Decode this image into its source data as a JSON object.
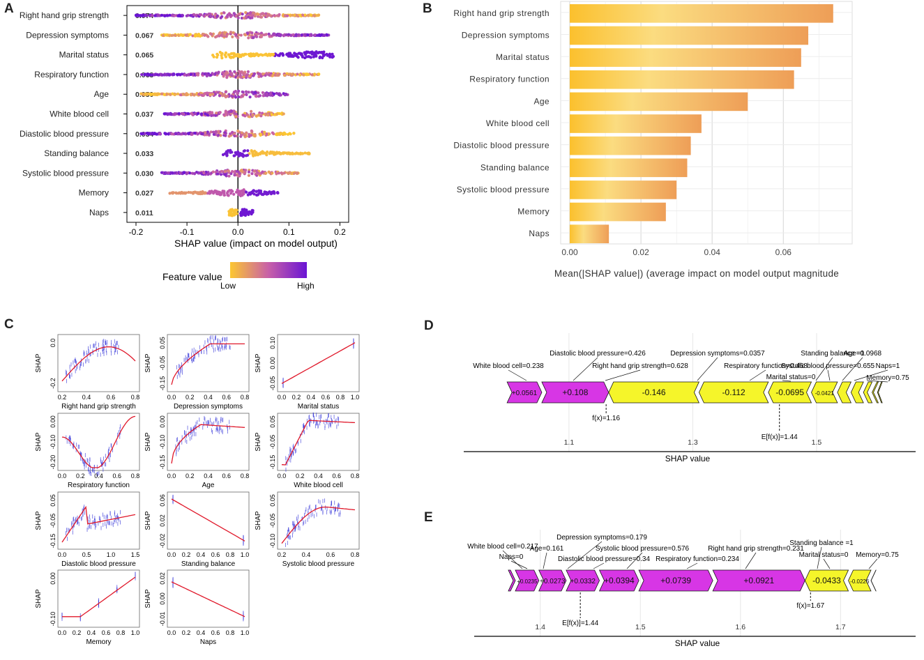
{
  "panels": {
    "a": "A",
    "b": "B",
    "c": "C",
    "d": "D",
    "e": "E"
  },
  "colors": {
    "low": "#fcc731",
    "mid": "#c860a8",
    "high": "#6a14d4",
    "bar_dark": "#ee9e57",
    "bar_light": "#fbc02d",
    "positive": "#d736e5",
    "negative": "#f5f52a",
    "trend": "#e0182a",
    "points": "#3030d8"
  },
  "chart_data": [
    {
      "panel": "A",
      "type": "scatter",
      "subtype": "shap-beeswarm",
      "xlabel": "SHAP value (impact on model output)",
      "xlim": [
        -0.2,
        0.2
      ],
      "xticks": [
        "-0.2",
        "-0.1",
        "0.0",
        "0.1",
        "0.2"
      ],
      "legend_title": "Feature value",
      "legend_low": "Low",
      "legend_high": "High",
      "features": [
        "Right hand grip strength",
        "Depression symptoms",
        "Marital status",
        "Respiratory function",
        "Age",
        "White blood cell",
        "Diastolic blood pressure",
        "Standing balance",
        "Systolic blood pressure",
        "Memory",
        "Naps"
      ],
      "values": [
        "0.074",
        "0.067",
        "0.065",
        "0.063",
        "0.050",
        "0.037",
        "0.034",
        "0.033",
        "0.030",
        "0.027",
        "0.011"
      ],
      "ranges": [
        [
          -0.2,
          0.16
        ],
        [
          -0.15,
          0.18
        ],
        [
          -0.05,
          0.19
        ],
        [
          -0.19,
          0.16
        ],
        [
          -0.19,
          0.1
        ],
        [
          -0.15,
          0.09
        ],
        [
          -0.19,
          0.11
        ],
        [
          -0.03,
          0.14
        ],
        [
          -0.15,
          0.12
        ],
        [
          -0.14,
          0.08
        ],
        [
          -0.02,
          0.03
        ]
      ]
    },
    {
      "panel": "B",
      "type": "bar",
      "orientation": "horizontal",
      "xlabel": "Mean(|SHAP value|) (average impact on model output magnitude",
      "xlim": [
        0,
        0.076
      ],
      "xticks": [
        "0.00",
        "0.02",
        "0.04",
        "0.06"
      ],
      "categories": [
        "Right hand grip strength",
        "Depression symptoms",
        "Marital status",
        "Respiratory function",
        "Age",
        "White blood cell",
        "Diastolic blood pressure",
        "Standing balance",
        "Systolic blood pressure",
        "Memory",
        "Naps"
      ],
      "values": [
        0.074,
        0.067,
        0.065,
        0.063,
        0.05,
        0.037,
        0.034,
        0.033,
        0.03,
        0.027,
        0.011
      ]
    },
    {
      "panel": "C",
      "type": "scatter",
      "subtype": "shap-dependence-grid",
      "ylabel": "SHAP",
      "plots": [
        {
          "label": "Right hand grip strength",
          "xticks": [
            "0.2",
            "0.4",
            "0.6",
            "0.8"
          ],
          "yticks": [
            "0.0",
            "-0.2"
          ]
        },
        {
          "label": "Depression symptoms",
          "xticks": [
            "0.0",
            "0.2",
            "0.4",
            "0.6",
            "0.8"
          ],
          "yticks": [
            "0.05",
            "-0.05",
            "-0.15"
          ]
        },
        {
          "label": "Marital status",
          "xticks": [
            "0.0",
            "0.2",
            "0.4",
            "0.6",
            "0.8",
            "1.0"
          ],
          "yticks": [
            "0.10",
            "0.00",
            "-0.05"
          ]
        },
        {
          "label": "Respiratory function",
          "xticks": [
            "0.0",
            "0.2",
            "0.4",
            "0.6",
            "0.8"
          ],
          "yticks": [
            "0.00",
            "-0.10",
            "-0.20"
          ]
        },
        {
          "label": "Age",
          "xticks": [
            "0.0",
            "0.2",
            "0.4",
            "0.6",
            "0.8"
          ],
          "yticks": [
            "0.00",
            "-0.10",
            "-0.15"
          ]
        },
        {
          "label": "White blood cell",
          "xticks": [
            "0.0",
            "0.2",
            "0.4",
            "0.6",
            "0.8"
          ],
          "yticks": [
            "0.05",
            "-0.05",
            "-0.15"
          ]
        },
        {
          "label": "Diastolic blood pressure",
          "xticks": [
            "0.0",
            "0.5",
            "1.0",
            "1.5"
          ],
          "yticks": [
            "0.05",
            "-0.05",
            "-0.15"
          ]
        },
        {
          "label": "Standing balance",
          "xticks": [
            "0.0",
            "0.2",
            "0.4",
            "0.6",
            "0.8",
            "1.0"
          ],
          "yticks": [
            "0.06",
            "0.02",
            "-0.02"
          ]
        },
        {
          "label": "Systolic blood pressure",
          "xticks": [
            "0.2",
            "0.4",
            "0.6",
            "0.8"
          ],
          "yticks": [
            "0.05",
            "-0.05",
            "-0.10"
          ]
        },
        {
          "label": "Memory",
          "xticks": [
            "0.0",
            "0.2",
            "0.4",
            "0.6",
            "0.8",
            "1.0"
          ],
          "yticks": [
            "0.00",
            "-0.10"
          ]
        },
        {
          "label": "Naps",
          "xticks": [
            "0.0",
            "0.2",
            "0.4",
            "0.6",
            "0.8",
            "1.0"
          ],
          "yticks": [
            "0.02",
            "0.00",
            "-0.01"
          ]
        }
      ]
    },
    {
      "panel": "D",
      "type": "bar",
      "subtype": "shap-force-plot",
      "xlabel": "SHAP value",
      "xlim": [
        0.93,
        1.66
      ],
      "xticks": [
        1.1,
        1.3,
        1.5
      ],
      "fx": 1.16,
      "fx_label": "f(x)=1.16",
      "ex": 1.44,
      "ex_label": "E[f(x)]=1.44",
      "segments": [
        {
          "start": 1.0,
          "end": 1.0561,
          "label": "+0.0561",
          "sign": "+"
        },
        {
          "start": 1.0561,
          "end": 1.1641,
          "label": "+0.108",
          "sign": "+"
        },
        {
          "start": 1.1641,
          "end": 1.3101,
          "label": "-0.146",
          "sign": "-"
        },
        {
          "start": 1.3101,
          "end": 1.4221,
          "label": "-0.112",
          "sign": "-"
        },
        {
          "start": 1.4221,
          "end": 1.4916,
          "label": "-0.0695",
          "sign": "-"
        },
        {
          "start": 1.4916,
          "end": 1.5337,
          "label": "-0.0421",
          "sign": "-"
        },
        {
          "start": 1.5337,
          "end": 1.5557,
          "label": "",
          "sign": "-"
        },
        {
          "start": 1.5557,
          "end": 1.5757,
          "label": "",
          "sign": "-"
        },
        {
          "start": 1.5757,
          "end": 1.5897,
          "label": "",
          "sign": "-"
        },
        {
          "start": 1.5897,
          "end": 1.5997,
          "label": "",
          "sign": "-"
        },
        {
          "start": 1.5997,
          "end": 1.6047,
          "label": "",
          "sign": "-"
        }
      ],
      "annotations": [
        "White blood cell=0.238",
        "Diastolic blood pressure=0.426",
        "Right hand grip strength=0.628",
        "Depression symptoms=0.0357",
        "Respiratory function=0.458",
        "Standing balance =1",
        "Marital status=0",
        "Systolic blood pressure=0.655",
        "Age=0.0968",
        "Naps=1",
        "Memory=0.75"
      ]
    },
    {
      "panel": "E",
      "type": "bar",
      "subtype": "shap-force-plot",
      "xlabel": "SHAP value",
      "xlim": [
        1.334,
        1.775
      ],
      "xticks": [
        1.4,
        1.5,
        1.6,
        1.7
      ],
      "fx": 1.67,
      "fx_label": "f(x)=1.67",
      "ex": 1.44,
      "ex_label": "E[f(x)]=1.44",
      "segments": [
        {
          "start": 1.3681,
          "end": 1.3751,
          "label": "",
          "sign": "+"
        },
        {
          "start": 1.3751,
          "end": 1.3986,
          "label": "+0.0235",
          "sign": "+"
        },
        {
          "start": 1.3986,
          "end": 1.4259,
          "label": "+0.0273",
          "sign": "+"
        },
        {
          "start": 1.4259,
          "end": 1.4591,
          "label": "+0.0332",
          "sign": "+"
        },
        {
          "start": 1.4591,
          "end": 1.4985,
          "label": "+0.0394",
          "sign": "+"
        },
        {
          "start": 1.4985,
          "end": 1.5724,
          "label": "+0.0739",
          "sign": "+"
        },
        {
          "start": 1.5724,
          "end": 1.6645,
          "label": "+0.0921",
          "sign": "+"
        },
        {
          "start": 1.6645,
          "end": 1.7078,
          "label": "-0.0433",
          "sign": "-"
        },
        {
          "start": 1.7078,
          "end": 1.7304,
          "label": "-0.0226",
          "sign": "-"
        },
        {
          "start": 1.7304,
          "end": 1.7354,
          "label": "",
          "sign": "-"
        }
      ],
      "annotations": [
        "White blood cell=0.217",
        "Naps=0",
        "Age=0.161",
        "Depression symptoms=0.179",
        "Diastolic blood pressure=0.34",
        "Systolic blood pressure=0.576",
        "Respiratory function=0.234",
        "Right hand grip strength=0.231",
        "Standing balance =1",
        "Marital status=0",
        "Memory=0.75"
      ]
    }
  ]
}
